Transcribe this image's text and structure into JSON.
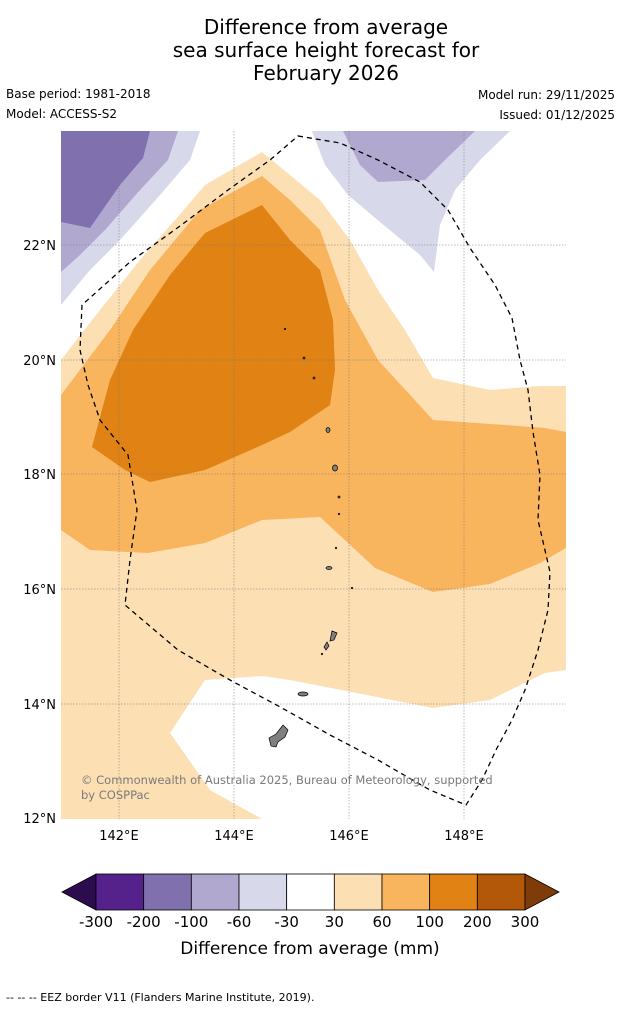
{
  "title": {
    "line1": "Difference from average",
    "line2": "sea surface height forecast for",
    "line3": "February 2026"
  },
  "meta": {
    "base_period": "Base period: 1981-2018",
    "model": "Model: ACCESS-S2",
    "model_run": "Model run: 29/11/2025",
    "issued": "Issued: 01/12/2025"
  },
  "map": {
    "lat_labels": [
      "22°N",
      "20°N",
      "18°N",
      "16°N",
      "14°N",
      "12°N"
    ],
    "lon_labels": [
      "142°E",
      "144°E",
      "146°E",
      "148°E"
    ],
    "copyright": "© Commonwealth of Australia 2025, Bureau of Meteorology, supported by COSPPac"
  },
  "colorbar": {
    "ticks": [
      "-300",
      "-200",
      "-100",
      "-60",
      "-30",
      "30",
      "60",
      "100",
      "200",
      "300"
    ],
    "colors": [
      "#2d0b4f",
      "#55218b",
      "#8170ae",
      "#b1a8d0",
      "#d8d8eb",
      "#ffffff",
      "#fddfb4",
      "#f9b45e",
      "#e08214",
      "#b25808",
      "#7f3b08"
    ],
    "label": "Difference from average (mm)"
  },
  "footer": {
    "legend": "--  --  -- EEZ border V11 (Flanders Marine Institute, 2019)."
  }
}
